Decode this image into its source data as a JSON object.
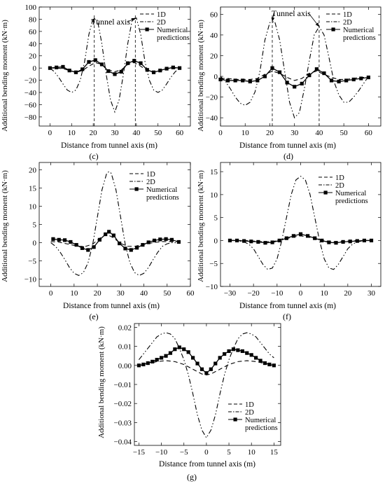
{
  "figure": {
    "panels": [
      {
        "caption": "(c)",
        "xlabel": "Distance from tunnel axis (m)",
        "ylabel": "Additional bending moment (kN·m)",
        "annotation": "Tunnel axis",
        "legend": [
          "1D",
          "2D",
          "Numerical predictions"
        ]
      },
      {
        "caption": "(d)",
        "xlabel": "Distance from tunnel axis (m)",
        "ylabel": "Additional bending moment (kN·m)",
        "annotation": "Tunnel axis",
        "legend": [
          "1D",
          "2D",
          "Numerical predictions"
        ]
      },
      {
        "caption": "(e)",
        "xlabel": "Distance from tunnel axis (m)",
        "ylabel": "Additional bending moment (kN·m)",
        "legend": [
          "1D",
          "2D",
          "Numerical predictions"
        ]
      },
      {
        "caption": "(f)",
        "xlabel": "Distance from tunnel axis (m)",
        "ylabel": "Additional bending moment (kN·m)",
        "legend": [
          "1D",
          "2D",
          "Numerical predictions"
        ]
      },
      {
        "caption": "(g)",
        "xlabel": "Distance from tunnel axis (m)",
        "ylabel": "Additional bending moment (kN·m)",
        "legend": [
          "1D",
          "2D",
          "Numerical predictions"
        ]
      }
    ]
  },
  "chart_data": [
    {
      "type": "line",
      "id": "c",
      "title": "",
      "xlabel": "Distance from tunnel axis (m)",
      "ylabel": "Additional bending moment (kN·m)",
      "xlim": [
        -5,
        65
      ],
      "ylim": [
        -95,
        100
      ],
      "xticks": [
        0,
        10,
        20,
        30,
        40,
        50,
        60
      ],
      "yticks": [
        -80,
        -60,
        -40,
        -20,
        0,
        20,
        40,
        60,
        80,
        100
      ],
      "vlines": [
        20.5,
        39.5
      ],
      "annotation": {
        "text": "Tunnel axis",
        "targets": [
          [
            20.5,
            82
          ],
          [
            39.5,
            82
          ]
        ]
      },
      "legend_position": "top-right",
      "series": [
        {
          "name": "1D",
          "style": "dash",
          "x": [
            0,
            3,
            6,
            9,
            12,
            15,
            18,
            21,
            24,
            27,
            30,
            33,
            36,
            39,
            42,
            45,
            48,
            51,
            54,
            57,
            60
          ],
          "y": [
            0,
            0,
            -1,
            -4,
            -7,
            -4,
            3,
            9,
            6,
            -3,
            -6,
            -3,
            6,
            9,
            3,
            -4,
            -7,
            -4,
            -1,
            0,
            0
          ]
        },
        {
          "name": "2D",
          "style": "dashdotdot",
          "x": [
            0,
            2,
            4,
            6,
            8,
            10,
            12,
            14,
            16,
            18,
            20,
            22,
            24,
            26,
            28,
            30,
            32,
            34,
            36,
            38,
            40,
            42,
            44,
            46,
            48,
            50,
            52,
            54,
            56,
            58,
            60
          ],
          "y": [
            0,
            -6,
            -15,
            -26,
            -36,
            -40,
            -36,
            -20,
            10,
            55,
            82,
            78,
            40,
            -10,
            -52,
            -72,
            -52,
            -10,
            40,
            78,
            82,
            55,
            10,
            -20,
            -36,
            -40,
            -36,
            -26,
            -15,
            -6,
            0
          ]
        },
        {
          "name": "Numerical predictions",
          "style": "solid-square",
          "x": [
            0,
            3,
            6,
            9,
            12,
            15,
            18,
            21,
            24,
            27,
            30,
            33,
            36,
            39,
            42,
            45,
            48,
            51,
            54,
            57,
            60
          ],
          "y": [
            0,
            1,
            2,
            -4,
            -7,
            -2,
            10,
            13,
            6,
            -5,
            -10,
            -6,
            8,
            12,
            8,
            -3,
            -7,
            -4,
            -1,
            1,
            0
          ]
        }
      ]
    },
    {
      "type": "line",
      "id": "d",
      "title": "",
      "xlabel": "Distance from tunnel axis (m)",
      "ylabel": "Additional bending moment (kN·m)",
      "xlim": [
        0,
        65
      ],
      "ylim": [
        -48,
        67
      ],
      "xticks": [
        0,
        10,
        20,
        30,
        40,
        50,
        60
      ],
      "yticks": [
        -40,
        -20,
        0,
        20,
        40,
        60
      ],
      "vlines": [
        21,
        40
      ],
      "annotation": {
        "text": "Tunnel axis",
        "targets": [
          [
            21,
            53
          ],
          [
            40,
            48
          ]
        ]
      },
      "legend_position": "top-right",
      "series": [
        {
          "name": "1D",
          "style": "dash",
          "x": [
            0,
            3,
            6,
            9,
            12,
            15,
            18,
            21,
            24,
            27,
            30,
            33,
            36,
            39,
            42,
            45,
            48,
            51,
            54,
            57,
            60
          ],
          "y": [
            -2,
            -2,
            -3,
            -3,
            -3,
            -2,
            2,
            5,
            3,
            -1,
            -4,
            -2,
            3,
            5,
            2,
            -1,
            -3,
            -3,
            -2,
            -1,
            -1
          ]
        },
        {
          "name": "2D",
          "style": "dashdotdot",
          "x": [
            0,
            2,
            4,
            6,
            8,
            10,
            12,
            14,
            16,
            18,
            20,
            22,
            24,
            26,
            28,
            30,
            32,
            34,
            36,
            38,
            40,
            42,
            44,
            46,
            48,
            50,
            52,
            54,
            56,
            58,
            60
          ],
          "y": [
            0,
            -5,
            -12,
            -20,
            -26,
            -28,
            -25,
            -15,
            5,
            35,
            52,
            53,
            35,
            5,
            -25,
            -40,
            -35,
            -12,
            15,
            40,
            48,
            40,
            18,
            -5,
            -18,
            -25,
            -25,
            -20,
            -14,
            -7,
            0
          ]
        },
        {
          "name": "Numerical predictions",
          "style": "solid-square",
          "x": [
            0,
            3,
            6,
            9,
            12,
            15,
            18,
            21,
            24,
            27,
            30,
            33,
            36,
            39,
            42,
            45,
            48,
            51,
            54,
            57,
            60
          ],
          "y": [
            -3,
            -4,
            -4,
            -4,
            -5,
            -4,
            0,
            8,
            4,
            -6,
            -10,
            -7,
            1,
            7,
            3,
            -4,
            -5,
            -4,
            -3,
            -2,
            -1
          ]
        }
      ]
    },
    {
      "type": "line",
      "id": "e",
      "title": "",
      "xlabel": "Distance from tunnel axis (m)",
      "ylabel": "Additional bending moment (kN·m)",
      "xlim": [
        -5,
        60
      ],
      "ylim": [
        -12,
        22
      ],
      "xticks": [
        0,
        10,
        20,
        30,
        40,
        50,
        60
      ],
      "yticks": [
        -10,
        -5,
        0,
        5,
        10,
        15,
        20
      ],
      "legend_position": "top-right",
      "series": [
        {
          "name": "1D",
          "style": "dash",
          "x": [
            0,
            3,
            6,
            9,
            12,
            15,
            18,
            21,
            24,
            27,
            30,
            33,
            36,
            39,
            42,
            45,
            48,
            51,
            54
          ],
          "y": [
            0.3,
            0.2,
            -0.2,
            -0.6,
            -1.0,
            -1.0,
            -0.4,
            1.2,
            2.3,
            1.3,
            -0.2,
            -1.0,
            -1.0,
            -0.6,
            -0.2,
            0.1,
            0.3,
            0.3,
            0.2
          ]
        },
        {
          "name": "2D",
          "style": "dashdotdot",
          "x": [
            0,
            2,
            4,
            6,
            8,
            10,
            12,
            14,
            16,
            18,
            20,
            22,
            24,
            25,
            26,
            28,
            30,
            32,
            34,
            36,
            38,
            40,
            42,
            44,
            46,
            48,
            50,
            52,
            54
          ],
          "y": [
            0,
            -1.0,
            -2.6,
            -4.6,
            -6.8,
            -8.4,
            -9.0,
            -8.2,
            -5.5,
            -0.5,
            7,
            14.5,
            19.0,
            19.5,
            19.0,
            14.5,
            7,
            -0.5,
            -5.5,
            -8.2,
            -9.0,
            -8.4,
            -6.8,
            -4.6,
            -2.6,
            -1.0,
            -0.3,
            0,
            0
          ]
        },
        {
          "name": "Numerical predictions",
          "style": "solid-square",
          "x": [
            1,
            3.5,
            6,
            8.5,
            11,
            13.5,
            16,
            18.5,
            21,
            23.5,
            25,
            27,
            29.5,
            32,
            34.5,
            37,
            39.5,
            42,
            44.5,
            47,
            49.5,
            52,
            55
          ],
          "y": [
            1.0,
            0.8,
            0.7,
            0.2,
            -0.6,
            -1.5,
            -2.0,
            -1.2,
            0.8,
            2.3,
            3.0,
            2.0,
            -0.2,
            -1.6,
            -2.0,
            -1.4,
            -0.6,
            0.1,
            0.6,
            0.9,
            1.0,
            0.8,
            0.2
          ]
        }
      ]
    },
    {
      "type": "line",
      "id": "f",
      "title": "",
      "xlabel": "Distance from tunnel axis (m)",
      "ylabel": "Additional bending moment (kN·m)",
      "xlim": [
        -34,
        34
      ],
      "ylim": [
        -10,
        17
      ],
      "xticks": [
        -30,
        -20,
        -10,
        0,
        10,
        20,
        30
      ],
      "yticks": [
        -10,
        -5,
        0,
        5,
        10,
        15
      ],
      "legend_position": "top-right",
      "series": [
        {
          "name": "1D",
          "style": "dash",
          "x": [
            -30,
            -27,
            -24,
            -21,
            -18,
            -15,
            -12,
            -9,
            -6,
            -3,
            0,
            3,
            6,
            9,
            12,
            15,
            18,
            21,
            24,
            27,
            30
          ],
          "y": [
            0,
            0,
            0,
            -0.1,
            -0.2,
            -0.3,
            -0.2,
            0,
            0.4,
            0.8,
            1.0,
            0.8,
            0.4,
            0,
            -0.2,
            -0.3,
            -0.2,
            -0.1,
            0,
            0,
            0
          ]
        },
        {
          "name": "2D",
          "style": "dashdotdot",
          "x": [
            -30,
            -28,
            -26,
            -24,
            -22,
            -20,
            -18,
            -16,
            -14,
            -12,
            -10,
            -8,
            -6,
            -4,
            -2,
            0,
            2,
            4,
            6,
            8,
            10,
            12,
            14,
            16,
            18,
            20,
            22,
            24,
            26,
            28,
            30
          ],
          "y": [
            0,
            0,
            -0.1,
            -0.3,
            -0.8,
            -1.8,
            -3.5,
            -5.2,
            -6.3,
            -6.0,
            -4.0,
            0,
            5,
            10,
            13.2,
            14.0,
            13.2,
            10,
            5,
            0,
            -4.0,
            -6.0,
            -6.3,
            -5.2,
            -3.5,
            -1.8,
            -0.8,
            -0.3,
            -0.1,
            0,
            0
          ]
        },
        {
          "name": "Numerical predictions",
          "style": "solid-square",
          "x": [
            -30,
            -27,
            -24,
            -21,
            -18,
            -15,
            -12,
            -9,
            -6,
            -3,
            0,
            3,
            6,
            9,
            12,
            15,
            18,
            21,
            24,
            27,
            30
          ],
          "y": [
            0,
            0,
            -0.1,
            -0.2,
            -0.3,
            -0.5,
            -0.4,
            0,
            0.5,
            1.0,
            1.4,
            1.0,
            0.5,
            0,
            -0.4,
            -0.5,
            -0.3,
            -0.2,
            -0.1,
            0,
            0
          ]
        }
      ]
    },
    {
      "type": "line",
      "id": "g",
      "title": "",
      "xlabel": "Distance from tunnel axis (m)",
      "ylabel": "Additional bending moment (kN·m)",
      "xlim": [
        -16,
        16.5
      ],
      "ylim": [
        -0.042,
        0.022
      ],
      "xticks": [
        -15,
        -10,
        -5,
        0,
        5,
        10,
        15
      ],
      "yticks": [
        -0.04,
        -0.03,
        -0.02,
        -0.01,
        0.0,
        0.01,
        0.02
      ],
      "legend_position": "bottom-right",
      "series": [
        {
          "name": "1D",
          "style": "dash",
          "x": [
            -15,
            -13,
            -11,
            -9,
            -7,
            -5,
            -3,
            -1,
            0,
            1,
            3,
            5,
            7,
            9,
            11,
            13,
            15
          ],
          "y": [
            0.0,
            0.001,
            0.002,
            0.0025,
            0.002,
            0.0005,
            -0.002,
            -0.0045,
            -0.005,
            -0.0045,
            -0.002,
            0.0005,
            0.002,
            0.0025,
            0.002,
            0.001,
            0.0
          ]
        },
        {
          "name": "2D",
          "style": "dashdotdot",
          "x": [
            -15,
            -14,
            -13,
            -12,
            -11,
            -10,
            -9,
            -8,
            -7,
            -6,
            -5,
            -4,
            -3,
            -2,
            -1,
            0,
            1,
            2,
            3,
            4,
            5,
            6,
            7,
            8,
            9,
            10,
            11,
            12,
            13,
            14,
            15
          ],
          "y": [
            0.003,
            0.006,
            0.009,
            0.012,
            0.015,
            0.0165,
            0.0172,
            0.0165,
            0.014,
            0.009,
            0.003,
            -0.005,
            -0.015,
            -0.026,
            -0.034,
            -0.038,
            -0.034,
            -0.026,
            -0.015,
            -0.005,
            0.003,
            0.009,
            0.014,
            0.0165,
            0.0172,
            0.0165,
            0.015,
            0.012,
            0.009,
            0.006,
            0.004
          ]
        },
        {
          "name": "Numerical predictions",
          "style": "solid-square",
          "x": [
            -15,
            -14,
            -13,
            -12,
            -11,
            -10,
            -9,
            -8,
            -7,
            -6,
            -5,
            -4,
            -3,
            -2,
            -1,
            0,
            1,
            2,
            3,
            4,
            5,
            6,
            7,
            8,
            9,
            10,
            11,
            12,
            13,
            14,
            15
          ],
          "y": [
            0.0,
            0.0005,
            0.0012,
            0.002,
            0.003,
            0.004,
            0.005,
            0.0065,
            0.0085,
            0.0095,
            0.0085,
            0.007,
            0.004,
            0.001,
            -0.002,
            -0.004,
            -0.002,
            0.001,
            0.004,
            0.006,
            0.0075,
            0.0085,
            0.008,
            0.0075,
            0.0065,
            0.0055,
            0.004,
            0.0025,
            0.0012,
            0.0005,
            0.0
          ]
        }
      ]
    }
  ]
}
